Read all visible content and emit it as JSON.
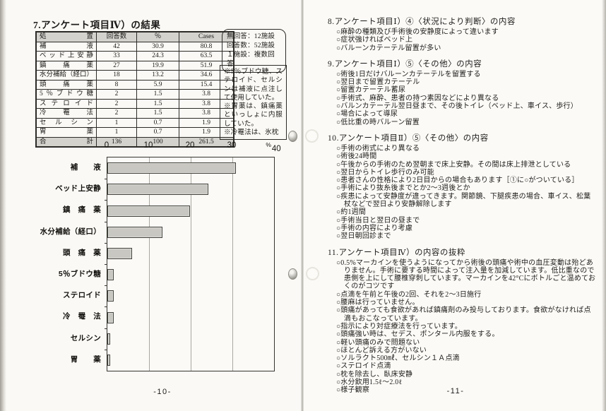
{
  "left_page": {
    "title": "7.アンケート項目Ⅳ）の結果",
    "table": {
      "headers": [
        "処　置",
        "回答数",
        "％",
        "Cases"
      ],
      "rows": [
        [
          "補液",
          "42",
          "30.9",
          "80.8"
        ],
        [
          "ベッド上安静",
          "33",
          "24.3",
          "63.5"
        ],
        [
          "鎮痛薬",
          "27",
          "19.9",
          "51.9"
        ],
        [
          "水分補給（経口）",
          "18",
          "13.2",
          "34.6"
        ],
        [
          "頭痛薬",
          "8",
          "5.9",
          "15.4"
        ],
        [
          "5％ブドウ糖",
          "2",
          "1.5",
          "3.8"
        ],
        [
          "ステロイド",
          "2",
          "1.5",
          "3.8"
        ],
        [
          "冷罨法",
          "2",
          "1.5",
          "3.8"
        ],
        [
          "セルシン",
          "1",
          "0.7",
          "1.9"
        ],
        [
          "胃薬",
          "1",
          "0.7",
          "1.9"
        ]
      ],
      "total_row": [
        "合計",
        "136",
        "100",
        "261.5"
      ]
    },
    "response_note_lines": [
      "無回答：12施設",
      "回答数：52施設",
      "１施設：複数回答"
    ],
    "remarks_note_lines": [
      "※5％ブドウ糖、ステロイド、セルシンは補液に点注して使用していた。",
      "※胃薬は、鎮痛薬といっしょに内服していた。",
      "※冷罨法は、氷枕"
    ],
    "page_number": "-10-"
  },
  "chart_data": {
    "type": "bar",
    "orientation": "horizontal",
    "title": "",
    "categories": [
      "補　　液",
      "ベッド上安静",
      "鎮　痛　薬",
      "水分補給（経口）",
      "頭　痛　薬",
      "5％ブドウ糖",
      "ステロイド",
      "冷　罨　法",
      "セルシン",
      "胃　　薬"
    ],
    "values": [
      30.9,
      24.3,
      19.9,
      13.2,
      5.9,
      1.5,
      1.5,
      1.5,
      0.7,
      0.7
    ],
    "xlim": [
      0,
      40
    ],
    "xticks": [
      0,
      10,
      20,
      30,
      40
    ],
    "unit_label": "%",
    "grid": true,
    "legend": false,
    "bar_color": "#c8c7c2",
    "bar_border_color": "#45443f"
  },
  "right_page": {
    "sections": [
      {
        "heading": "8.アンケート項目Ⅰ）④〈状況により判断〉の内容",
        "items": [
          "○麻酔の種類及び手術後の安静度によって違います",
          "○症状強ければベッド上",
          "○バルーンカテーテル留置が多い"
        ]
      },
      {
        "heading": "9.アンケート項目Ⅰ）⑤〈その他〉の内容",
        "items": [
          "○術後1日だけバルーンカテーテルを留置する",
          "○翌日まで留置カテーテル",
          "○留置カテーテル蓄尿",
          "○手術式、麻酔、患者の持つ素因などにより異なる",
          "○バルンカテーテル翌日昼まで、その後トイレ（ベッド上、車イス、歩行）",
          "○場合によって導尿",
          "○低比重の時バルーン留置"
        ]
      },
      {
        "heading": "10.アンケート項目Ⅱ）⑤〈その他〉の内容",
        "items": [
          "○手術の術式により異なる",
          "○術後24時間",
          "○午後からの手術のため翌朝まで床上安静。その間は床上排泄としている",
          "○翌日からトイレ歩行のみ可能",
          "○患者さんの性格により2日目からの場合もあります［①に○がついている］",
          "○手術により抜糸後までとか2～3週後とか",
          "○疾患によって安静度が違ってきます。関節鏡、下腿疾患の場合、車イス、松葉杖などで翌日より安静解除します",
          "○約1週間",
          "○手術当日と翌日の昼まで",
          "○手術の内容により考慮",
          "○翌日朝回診まで"
        ]
      },
      {
        "heading": "11.アンケート項目Ⅳ）の内容の抜粋",
        "items": [
          "○0.5%マーカインを使うようになってから術後の頭痛や術中の血圧変動は殆どありません。手術に要する時間によって注入量を加減しています。低比重なので患側を上にして腰椎穿刺しています。マーカインを42°Cにボトルごと温めておくのがコツです",
          "○点滴を午前と午後の2回、それを2～3日施行",
          "○腰麻は行っていません。",
          "○頭痛があっても食欲があれば鎮痛剤のみ投与しております。食欲がなければ点滴もおこなっています。",
          "○指示により対症療法を行っています。",
          "○頭痛強い時は、セデス、ポンタール内服をする。",
          "○軽い頭痛のみで問題ない",
          "○ほとんど訴える方がいない",
          "○ソルラクト500㎖、セルシン１Ａ点滴",
          "○ステロイド点滴",
          "○枕を除去し、臥床安静",
          "○水分飲用1.5ℓ～2.0ℓ",
          "○様子観察"
        ]
      }
    ],
    "page_number": "-11-"
  }
}
